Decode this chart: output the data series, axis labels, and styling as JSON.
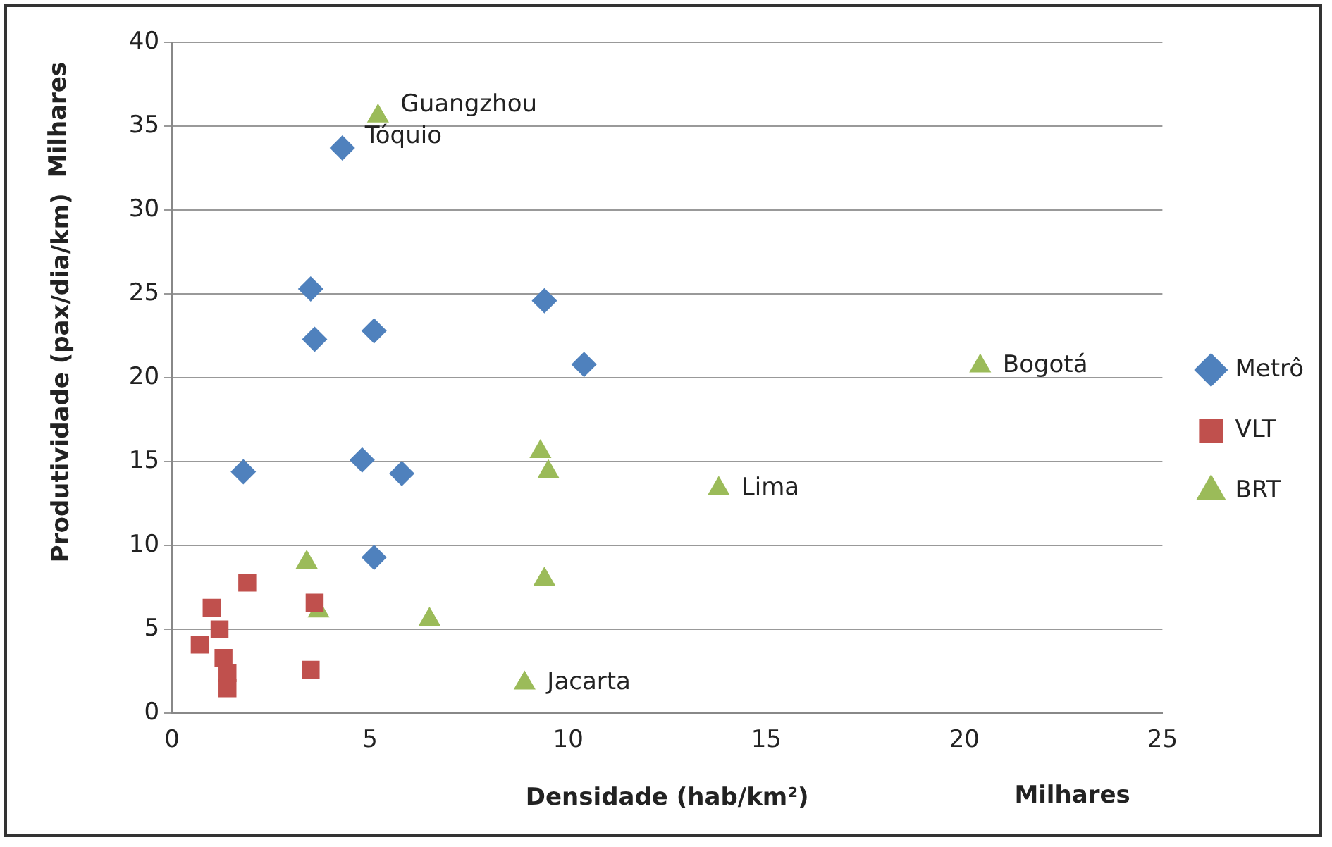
{
  "chart_data": {
    "type": "scatter",
    "xlabel": "Densidade (hab/km²)",
    "ylabel": "Produtividade (pax/dia/km)",
    "xlim": [
      0,
      25
    ],
    "xticks": [
      0,
      5,
      10,
      15,
      20,
      25
    ],
    "ylim": [
      0,
      40
    ],
    "yticks": [
      0,
      5,
      10,
      15,
      20,
      25,
      30,
      35,
      40
    ],
    "grid": "y",
    "legend": "right",
    "series": [
      {
        "name": "Metrô",
        "color": "#4f81bd",
        "marker": "diamond",
        "x": [
          4.3,
          3.5,
          3.6,
          5.1,
          9.4,
          10.4,
          1.8,
          4.8,
          5.8,
          5.1
        ],
        "values": [
          33.7,
          25.3,
          22.3,
          22.8,
          24.6,
          20.8,
          14.4,
          15.1,
          14.3,
          9.3
        ]
      },
      {
        "name": "VLT",
        "color": "#c0504d",
        "marker": "square",
        "x": [
          1.9,
          1.0,
          1.2,
          0.7,
          1.3,
          1.4,
          1.4,
          3.6,
          3.5
        ],
        "values": [
          7.8,
          6.3,
          5.0,
          4.1,
          3.3,
          2.4,
          1.5,
          6.6,
          2.6
        ]
      },
      {
        "name": "BRT",
        "color": "#9bbb59",
        "marker": "triangle",
        "x": [
          5.2,
          20.4,
          13.8,
          9.3,
          9.5,
          9.4,
          6.5,
          8.9,
          3.4,
          3.7
        ],
        "values": [
          35.6,
          20.7,
          13.4,
          15.6,
          14.4,
          8.0,
          5.6,
          1.8,
          9.0,
          6.1
        ]
      }
    ],
    "annotations": [
      {
        "text": "Guangzhou",
        "x": 5.2,
        "y": 35.6
      },
      {
        "text": "Tóquio",
        "x": 4.3,
        "y": 33.7
      },
      {
        "text": "Bogotá",
        "x": 20.4,
        "y": 20.7
      },
      {
        "text": "Lima",
        "x": 13.8,
        "y": 13.4
      },
      {
        "text": "Jacarta",
        "x": 8.9,
        "y": 1.8
      },
      "Milhares",
      "Milhares"
    ]
  }
}
